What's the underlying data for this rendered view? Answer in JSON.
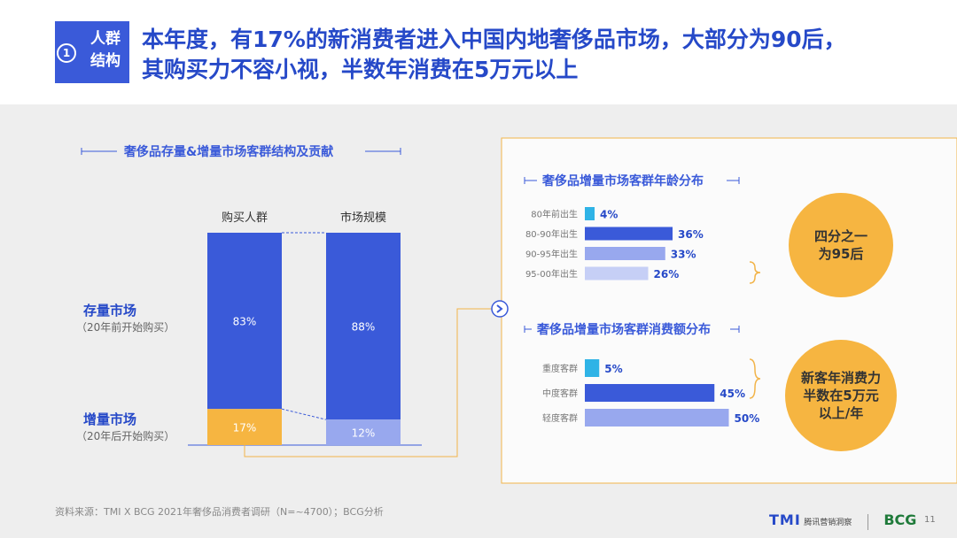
{
  "header": {
    "badge_num": "1",
    "badge_line1": "人群",
    "badge_line2": "结构",
    "headline_line1": "本年度，有17%的新消费者进入中国内地奢侈品市场，大部分为90后，",
    "headline_line2": "其购买力不容小视，半数年消费在5万元以上"
  },
  "left_panel": {
    "title": "奢侈品存量&增量市场客群结构及贡献",
    "row_stock_label": "存量市场",
    "row_stock_sub": "（20年前开始购买）",
    "row_incr_label": "增量市场",
    "row_incr_sub": "（20年后开始购买）"
  },
  "right_panel": {
    "age_title": "奢侈品增量市场客群年龄分布",
    "spend_title": "奢侈品增量市场客群消费额分布",
    "age_callout_line1": "四分之一",
    "age_callout_line2": "为95后",
    "spend_callout_line1": "新客年消费力",
    "spend_callout_line2": "半数在5万元",
    "spend_callout_line3": "以上/年"
  },
  "colors": {
    "blue": "#3a5ad9",
    "light_blue": "#98a8ee",
    "lighter_blue": "#c6cff6",
    "cyan": "#2fb3e6",
    "orange": "#f6b541",
    "title_blue": "#2649c8"
  },
  "chart_data": [
    {
      "type": "bar",
      "stacked": true,
      "categories": [
        "购买人群",
        "市场规模"
      ],
      "series": [
        {
          "name": "存量市场",
          "values": [
            83,
            88
          ]
        },
        {
          "name": "增量市场",
          "values": [
            17,
            12
          ]
        }
      ],
      "value_labels": [
        [
          "83%",
          "88%"
        ],
        [
          "17%",
          "12%"
        ]
      ],
      "ylim": [
        0,
        100
      ]
    },
    {
      "type": "bar",
      "orientation": "horizontal",
      "categories": [
        "80年前出生",
        "80-90年出生",
        "90-95年出生",
        "95-00年出生"
      ],
      "values": [
        4,
        36,
        33,
        26
      ],
      "value_labels": [
        "4%",
        "36%",
        "33%",
        "26%"
      ]
    },
    {
      "type": "bar",
      "orientation": "horizontal",
      "categories": [
        "重度客群",
        "中度客群",
        "轻度客群"
      ],
      "values": [
        5,
        45,
        50
      ],
      "value_labels": [
        "5%",
        "45%",
        "50%"
      ]
    }
  ],
  "footer": {
    "source": "资料来源：TMI X BCG 2021年奢侈品消费者调研（N=~4700）；BCG分析",
    "logo_tmi": "TMI",
    "logo_tmi_sub": "腾讯营销洞察",
    "logo_bcg": "BCG",
    "page": "11"
  }
}
